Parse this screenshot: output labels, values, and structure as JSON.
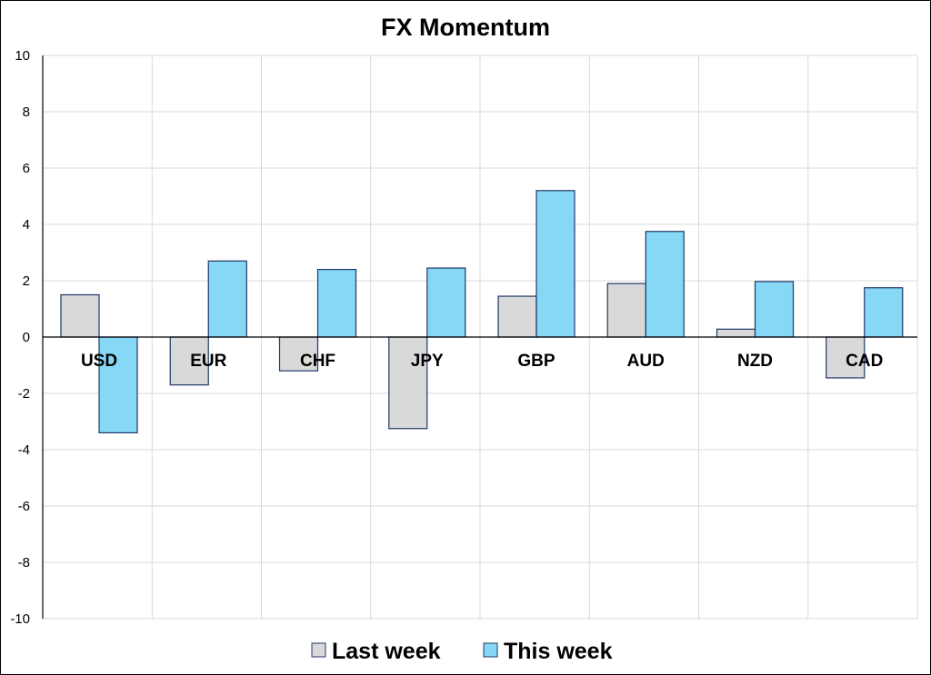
{
  "chart_data": {
    "type": "bar",
    "title": "FX Momentum",
    "xlabel": "",
    "ylabel": "",
    "categories": [
      "USD",
      "EUR",
      "CHF",
      "JPY",
      "GBP",
      "AUD",
      "NZD",
      "CAD"
    ],
    "series": [
      {
        "name": "Last week",
        "color": "#d9d9d9",
        "values": [
          1.5,
          -1.7,
          -1.2,
          -3.25,
          1.45,
          1.9,
          0.28,
          -1.45
        ]
      },
      {
        "name": "This week",
        "color": "#87d7f7",
        "values": [
          -3.4,
          2.7,
          2.4,
          2.45,
          5.2,
          3.75,
          1.97,
          1.75
        ]
      }
    ],
    "ylim": [
      -10,
      10
    ],
    "yticks": [
      10,
      8,
      6,
      4,
      2,
      0,
      -2,
      -4,
      -6,
      -8,
      -10
    ],
    "grid": true,
    "legend_position": "bottom",
    "bar_outline_color": "#1f3864",
    "gridline_color": "#d9d9d9"
  }
}
